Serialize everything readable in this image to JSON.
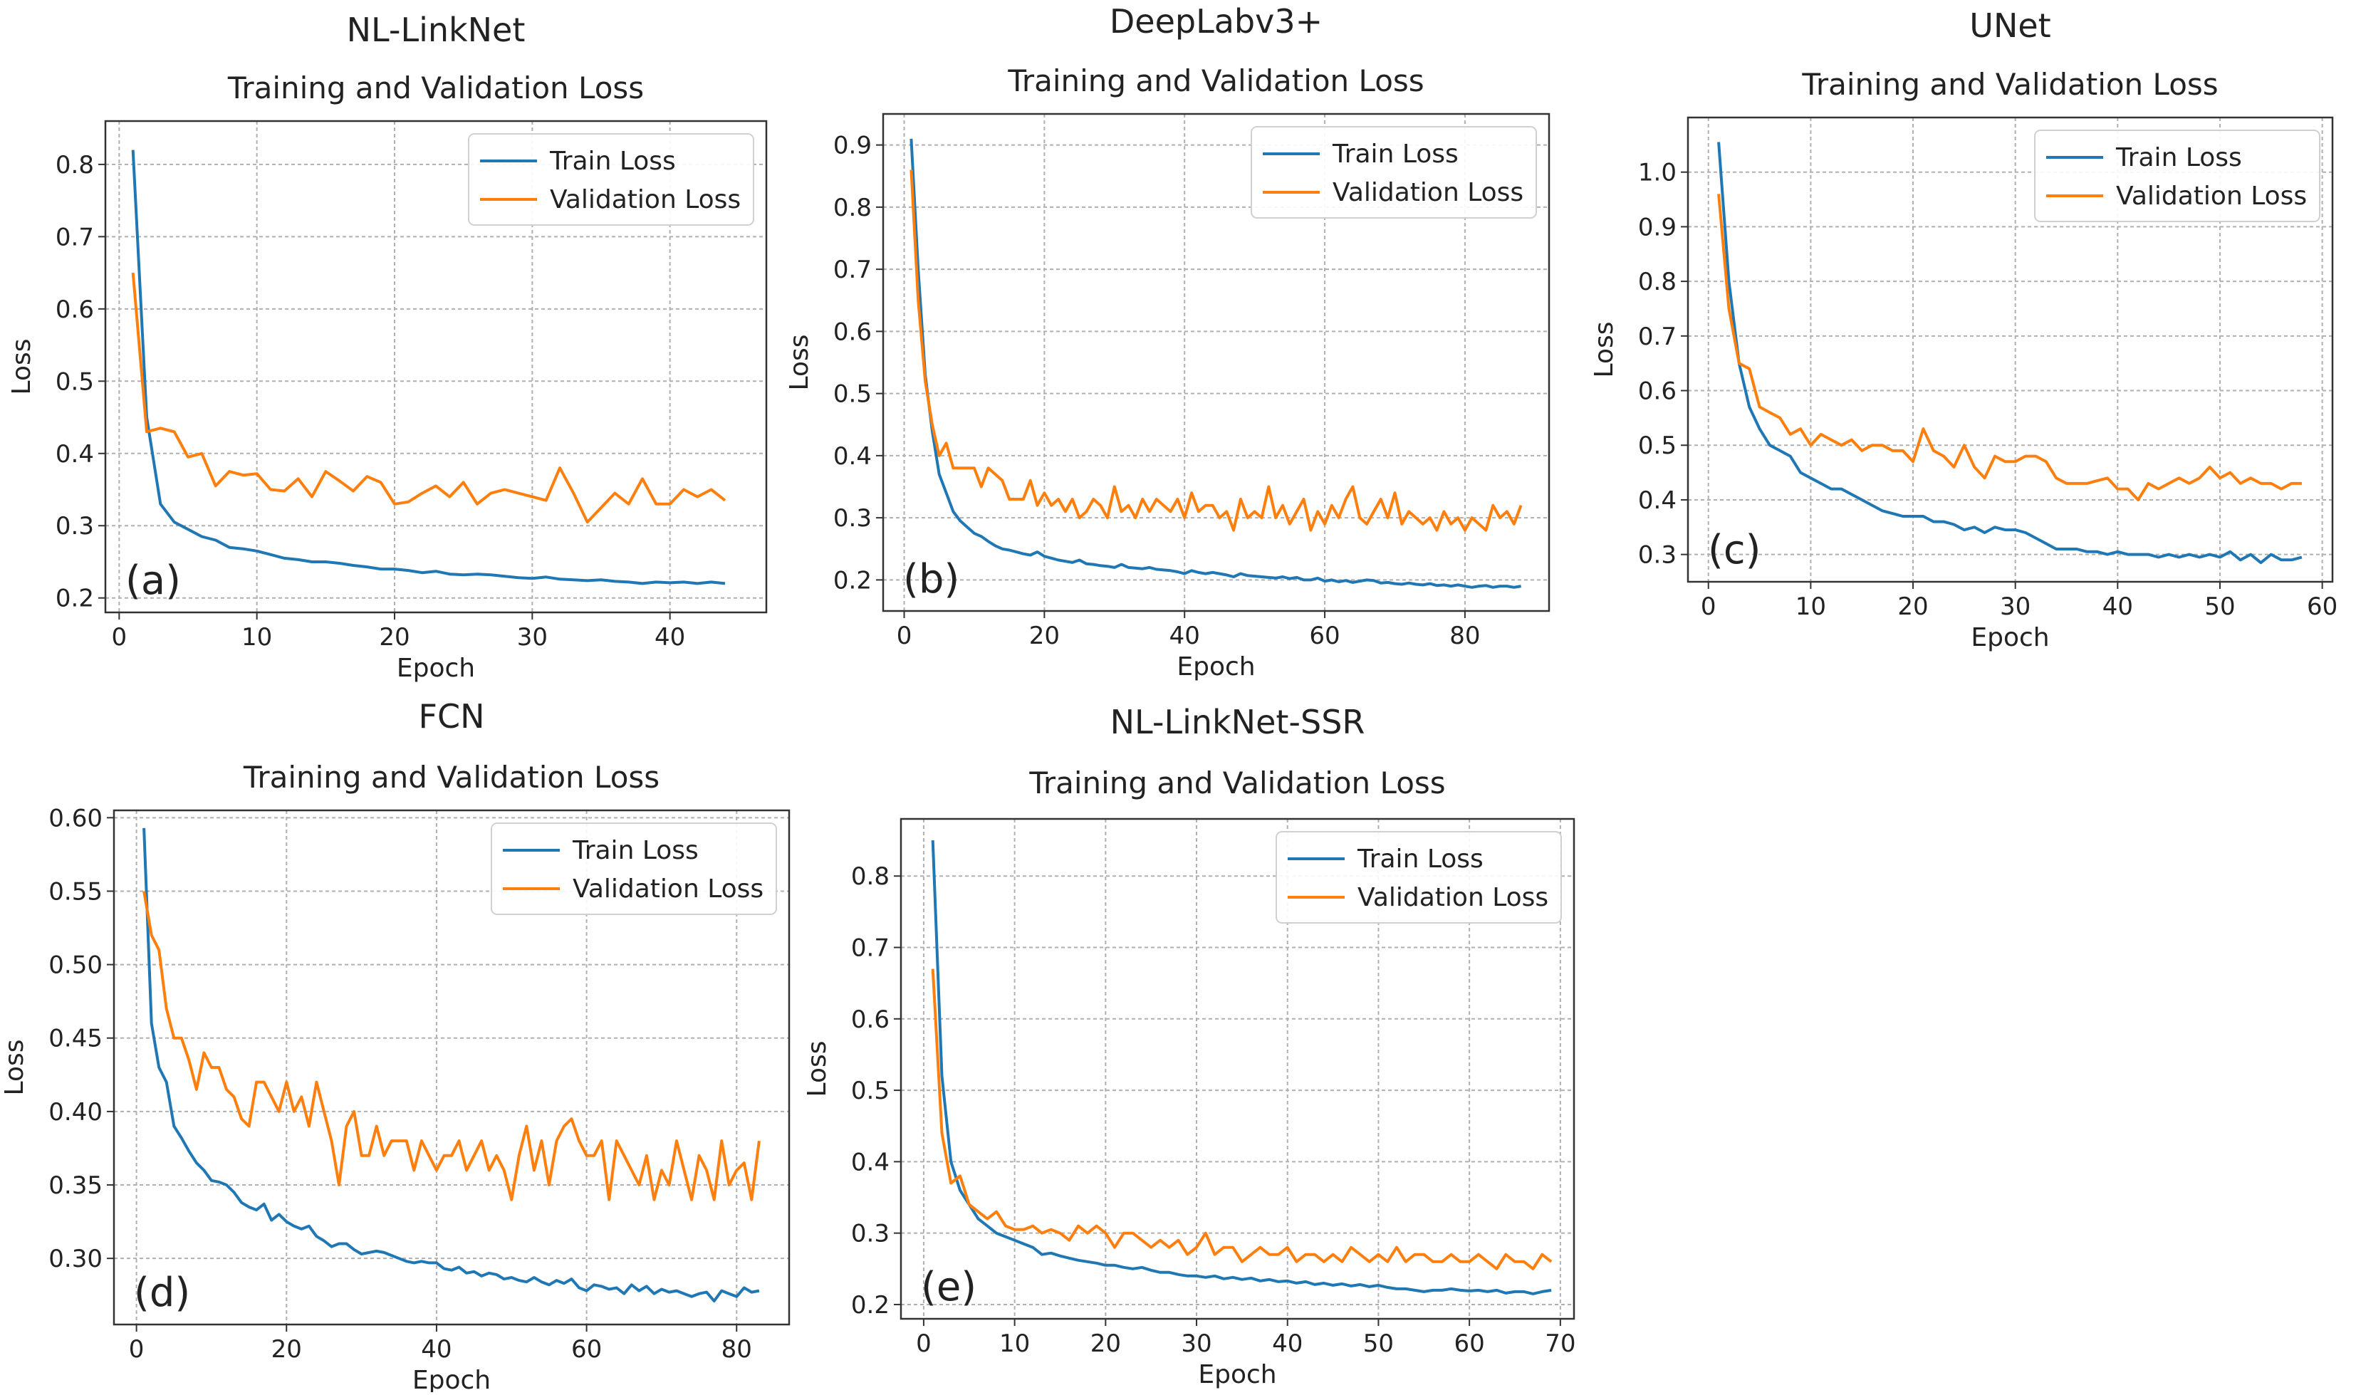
{
  "colors": {
    "train": "#1f77b4",
    "validation": "#ff7f0e",
    "grid": "#b0b0b0",
    "axes": "#333333"
  },
  "charts": [
    {
      "model": "NL-LinkNet",
      "chart_data": {
        "type": "line",
        "title": "Training and Validation Loss",
        "xlabel": "Epoch",
        "ylabel": "Loss",
        "panel_label": "(a)",
        "xlim": [
          -1,
          47
        ],
        "ylim": [
          0.18,
          0.86
        ],
        "xticks": [
          0,
          10,
          20,
          30,
          40
        ],
        "yticks": [
          0.2,
          0.3,
          0.4,
          0.5,
          0.6,
          0.7,
          0.8
        ],
        "ytick_labels": [
          "0.2",
          "0.3",
          "0.4",
          "0.5",
          "0.6",
          "0.7",
          "0.8"
        ],
        "legend_position": "top-right",
        "series": [
          {
            "name": "Train Loss",
            "values": [
              0.82,
              0.45,
              0.33,
              0.305,
              0.295,
              0.285,
              0.28,
              0.27,
              0.268,
              0.265,
              0.26,
              0.255,
              0.253,
              0.25,
              0.25,
              0.248,
              0.245,
              0.243,
              0.24,
              0.24,
              0.238,
              0.235,
              0.237,
              0.233,
              0.232,
              0.233,
              0.232,
              0.23,
              0.228,
              0.227,
              0.229,
              0.226,
              0.225,
              0.224,
              0.225,
              0.223,
              0.222,
              0.22,
              0.222,
              0.221,
              0.222,
              0.22,
              0.222,
              0.22
            ]
          },
          {
            "name": "Validation Loss",
            "values": [
              0.65,
              0.43,
              0.435,
              0.43,
              0.395,
              0.4,
              0.355,
              0.375,
              0.37,
              0.372,
              0.35,
              0.348,
              0.365,
              0.34,
              0.375,
              0.362,
              0.348,
              0.368,
              0.36,
              0.33,
              0.333,
              0.345,
              0.355,
              0.34,
              0.36,
              0.33,
              0.345,
              0.35,
              0.345,
              0.34,
              0.335,
              0.38,
              0.345,
              0.305,
              0.325,
              0.345,
              0.33,
              0.365,
              0.33,
              0.33,
              0.35,
              0.34,
              0.35,
              0.335
            ]
          }
        ]
      }
    },
    {
      "model": "DeepLabv3+",
      "chart_data": {
        "type": "line",
        "title": "Training and Validation Loss",
        "xlabel": "Epoch",
        "ylabel": "Loss",
        "panel_label": "(b)",
        "xlim": [
          -3,
          92
        ],
        "ylim": [
          0.15,
          0.95
        ],
        "xticks": [
          0,
          20,
          40,
          60,
          80
        ],
        "yticks": [
          0.2,
          0.3,
          0.4,
          0.5,
          0.6,
          0.7,
          0.8,
          0.9
        ],
        "ytick_labels": [
          "0.2",
          "0.3",
          "0.4",
          "0.5",
          "0.6",
          "0.7",
          "0.8",
          "0.9"
        ],
        "legend_position": "top-right",
        "series": [
          {
            "name": "Train Loss",
            "values": [
              0.91,
              0.7,
              0.53,
              0.44,
              0.37,
              0.34,
              0.31,
              0.295,
              0.285,
              0.275,
              0.27,
              0.262,
              0.255,
              0.25,
              0.248,
              0.245,
              0.242,
              0.24,
              0.245,
              0.238,
              0.235,
              0.232,
              0.23,
              0.228,
              0.232,
              0.226,
              0.225,
              0.223,
              0.222,
              0.22,
              0.225,
              0.22,
              0.219,
              0.218,
              0.22,
              0.217,
              0.216,
              0.215,
              0.213,
              0.21,
              0.215,
              0.212,
              0.21,
              0.212,
              0.21,
              0.208,
              0.205,
              0.21,
              0.207,
              0.206,
              0.205,
              0.204,
              0.203,
              0.205,
              0.202,
              0.204,
              0.2,
              0.2,
              0.203,
              0.198,
              0.2,
              0.197,
              0.199,
              0.196,
              0.198,
              0.2,
              0.199,
              0.195,
              0.196,
              0.194,
              0.193,
              0.195,
              0.193,
              0.192,
              0.194,
              0.191,
              0.192,
              0.19,
              0.192,
              0.19,
              0.188,
              0.19,
              0.191,
              0.188,
              0.19,
              0.19,
              0.188,
              0.19
            ]
          },
          {
            "name": "Validation Loss",
            "values": [
              0.86,
              0.65,
              0.52,
              0.45,
              0.4,
              0.42,
              0.38,
              0.38,
              0.38,
              0.38,
              0.35,
              0.38,
              0.37,
              0.36,
              0.33,
              0.33,
              0.33,
              0.36,
              0.32,
              0.34,
              0.32,
              0.33,
              0.31,
              0.33,
              0.3,
              0.31,
              0.33,
              0.32,
              0.3,
              0.35,
              0.31,
              0.32,
              0.3,
              0.33,
              0.31,
              0.33,
              0.32,
              0.31,
              0.33,
              0.3,
              0.34,
              0.31,
              0.32,
              0.32,
              0.3,
              0.31,
              0.28,
              0.33,
              0.3,
              0.31,
              0.3,
              0.35,
              0.3,
              0.32,
              0.29,
              0.31,
              0.33,
              0.28,
              0.31,
              0.29,
              0.32,
              0.3,
              0.33,
              0.35,
              0.3,
              0.29,
              0.31,
              0.33,
              0.3,
              0.34,
              0.29,
              0.31,
              0.3,
              0.29,
              0.3,
              0.28,
              0.31,
              0.29,
              0.3,
              0.28,
              0.3,
              0.29,
              0.28,
              0.32,
              0.3,
              0.31,
              0.29,
              0.32
            ]
          }
        ]
      }
    },
    {
      "model": "UNet",
      "chart_data": {
        "type": "line",
        "title": "Training and Validation Loss",
        "xlabel": "Epoch",
        "ylabel": "Loss",
        "panel_label": "(c)",
        "xlim": [
          -2,
          61
        ],
        "ylim": [
          0.25,
          1.1
        ],
        "xticks": [
          0,
          10,
          20,
          30,
          40,
          50,
          60
        ],
        "yticks": [
          0.3,
          0.4,
          0.5,
          0.6,
          0.7,
          0.8,
          0.9,
          1.0
        ],
        "ytick_labels": [
          "0.3",
          "0.4",
          "0.5",
          "0.6",
          "0.7",
          "0.8",
          "0.9",
          "1.0"
        ],
        "legend_position": "top-right",
        "series": [
          {
            "name": "Train Loss",
            "values": [
              1.055,
              0.8,
              0.65,
              0.57,
              0.53,
              0.5,
              0.49,
              0.48,
              0.45,
              0.44,
              0.43,
              0.42,
              0.42,
              0.41,
              0.4,
              0.39,
              0.38,
              0.375,
              0.37,
              0.37,
              0.37,
              0.36,
              0.36,
              0.355,
              0.345,
              0.35,
              0.34,
              0.35,
              0.345,
              0.345,
              0.34,
              0.33,
              0.32,
              0.31,
              0.31,
              0.31,
              0.305,
              0.305,
              0.3,
              0.305,
              0.3,
              0.3,
              0.3,
              0.295,
              0.3,
              0.295,
              0.3,
              0.295,
              0.3,
              0.295,
              0.305,
              0.29,
              0.3,
              0.285,
              0.3,
              0.29,
              0.29,
              0.295
            ]
          },
          {
            "name": "Validation Loss",
            "values": [
              0.96,
              0.75,
              0.65,
              0.64,
              0.57,
              0.56,
              0.55,
              0.52,
              0.53,
              0.5,
              0.52,
              0.51,
              0.5,
              0.51,
              0.49,
              0.5,
              0.5,
              0.49,
              0.49,
              0.47,
              0.53,
              0.49,
              0.48,
              0.46,
              0.5,
              0.46,
              0.44,
              0.48,
              0.47,
              0.47,
              0.48,
              0.48,
              0.47,
              0.44,
              0.43,
              0.43,
              0.43,
              0.435,
              0.44,
              0.42,
              0.42,
              0.4,
              0.43,
              0.42,
              0.43,
              0.44,
              0.43,
              0.44,
              0.46,
              0.44,
              0.45,
              0.43,
              0.44,
              0.43,
              0.43,
              0.42,
              0.43,
              0.43
            ]
          }
        ]
      }
    },
    {
      "model": "FCN",
      "chart_data": {
        "type": "line",
        "title": "Training and Validation Loss",
        "xlabel": "Epoch",
        "ylabel": "Loss",
        "panel_label": "(d)",
        "xlim": [
          -3,
          87
        ],
        "ylim": [
          0.255,
          0.605
        ],
        "xticks": [
          0,
          20,
          40,
          60,
          80
        ],
        "yticks": [
          0.3,
          0.35,
          0.4,
          0.45,
          0.5,
          0.55,
          0.6
        ],
        "ytick_labels": [
          "0.30",
          "0.35",
          "0.40",
          "0.45",
          "0.50",
          "0.55",
          "0.60"
        ],
        "legend_position": "top-right",
        "series": [
          {
            "name": "Train Loss",
            "values": [
              0.593,
              0.46,
              0.43,
              0.42,
              0.39,
              0.382,
              0.373,
              0.365,
              0.36,
              0.353,
              0.352,
              0.35,
              0.345,
              0.338,
              0.335,
              0.333,
              0.337,
              0.326,
              0.33,
              0.325,
              0.322,
              0.32,
              0.322,
              0.315,
              0.312,
              0.308,
              0.31,
              0.31,
              0.306,
              0.303,
              0.304,
              0.305,
              0.304,
              0.302,
              0.3,
              0.298,
              0.297,
              0.298,
              0.297,
              0.297,
              0.293,
              0.292,
              0.294,
              0.29,
              0.291,
              0.288,
              0.29,
              0.289,
              0.286,
              0.287,
              0.285,
              0.284,
              0.287,
              0.284,
              0.282,
              0.285,
              0.283,
              0.286,
              0.28,
              0.278,
              0.282,
              0.281,
              0.279,
              0.28,
              0.276,
              0.282,
              0.278,
              0.281,
              0.276,
              0.279,
              0.277,
              0.278,
              0.276,
              0.274,
              0.276,
              0.277,
              0.271,
              0.278,
              0.276,
              0.274,
              0.28,
              0.277,
              0.278
            ]
          },
          {
            "name": "Validation Loss",
            "values": [
              0.55,
              0.52,
              0.51,
              0.47,
              0.45,
              0.45,
              0.435,
              0.415,
              0.44,
              0.43,
              0.43,
              0.415,
              0.41,
              0.395,
              0.39,
              0.42,
              0.42,
              0.41,
              0.4,
              0.42,
              0.4,
              0.41,
              0.39,
              0.42,
              0.4,
              0.38,
              0.35,
              0.39,
              0.4,
              0.37,
              0.37,
              0.39,
              0.37,
              0.38,
              0.38,
              0.38,
              0.36,
              0.38,
              0.37,
              0.36,
              0.37,
              0.37,
              0.38,
              0.36,
              0.37,
              0.38,
              0.36,
              0.37,
              0.36,
              0.34,
              0.37,
              0.39,
              0.36,
              0.38,
              0.35,
              0.38,
              0.39,
              0.395,
              0.38,
              0.37,
              0.37,
              0.38,
              0.34,
              0.38,
              0.37,
              0.36,
              0.35,
              0.37,
              0.34,
              0.36,
              0.35,
              0.38,
              0.36,
              0.34,
              0.37,
              0.36,
              0.34,
              0.38,
              0.35,
              0.36,
              0.365,
              0.34,
              0.38
            ]
          }
        ]
      }
    },
    {
      "model": "NL-LinkNet-SSR",
      "chart_data": {
        "type": "line",
        "title": "Training and Validation Loss",
        "xlabel": "Epoch",
        "ylabel": "Loss",
        "panel_label": "(e)",
        "xlim": [
          -2.5,
          71.5
        ],
        "ylim": [
          0.18,
          0.88
        ],
        "xticks": [
          0,
          10,
          20,
          30,
          40,
          50,
          60,
          70
        ],
        "yticks": [
          0.2,
          0.3,
          0.4,
          0.5,
          0.6,
          0.7,
          0.8
        ],
        "ytick_labels": [
          "0.2",
          "0.3",
          "0.4",
          "0.5",
          "0.6",
          "0.7",
          "0.8"
        ],
        "legend_position": "top-right",
        "series": [
          {
            "name": "Train Loss",
            "values": [
              0.85,
              0.52,
              0.4,
              0.36,
              0.34,
              0.32,
              0.31,
              0.3,
              0.295,
              0.29,
              0.285,
              0.28,
              0.27,
              0.272,
              0.268,
              0.265,
              0.262,
              0.26,
              0.258,
              0.255,
              0.255,
              0.252,
              0.25,
              0.252,
              0.248,
              0.245,
              0.245,
              0.242,
              0.24,
              0.24,
              0.238,
              0.24,
              0.236,
              0.238,
              0.235,
              0.237,
              0.233,
              0.235,
              0.232,
              0.233,
              0.23,
              0.232,
              0.228,
              0.23,
              0.227,
              0.229,
              0.226,
              0.228,
              0.225,
              0.227,
              0.224,
              0.222,
              0.222,
              0.22,
              0.218,
              0.22,
              0.22,
              0.222,
              0.22,
              0.219,
              0.22,
              0.218,
              0.22,
              0.216,
              0.218,
              0.218,
              0.215,
              0.218,
              0.22
            ]
          },
          {
            "name": "Validation Loss",
            "values": [
              0.67,
              0.44,
              0.37,
              0.38,
              0.34,
              0.33,
              0.32,
              0.33,
              0.31,
              0.305,
              0.305,
              0.31,
              0.3,
              0.305,
              0.3,
              0.29,
              0.31,
              0.3,
              0.31,
              0.3,
              0.28,
              0.3,
              0.3,
              0.29,
              0.28,
              0.29,
              0.28,
              0.29,
              0.27,
              0.28,
              0.3,
              0.27,
              0.28,
              0.28,
              0.26,
              0.27,
              0.28,
              0.27,
              0.27,
              0.28,
              0.26,
              0.27,
              0.27,
              0.26,
              0.27,
              0.26,
              0.28,
              0.27,
              0.26,
              0.27,
              0.26,
              0.28,
              0.26,
              0.27,
              0.27,
              0.26,
              0.26,
              0.27,
              0.26,
              0.26,
              0.27,
              0.26,
              0.25,
              0.27,
              0.26,
              0.26,
              0.25,
              0.27,
              0.26
            ]
          }
        ]
      }
    }
  ]
}
